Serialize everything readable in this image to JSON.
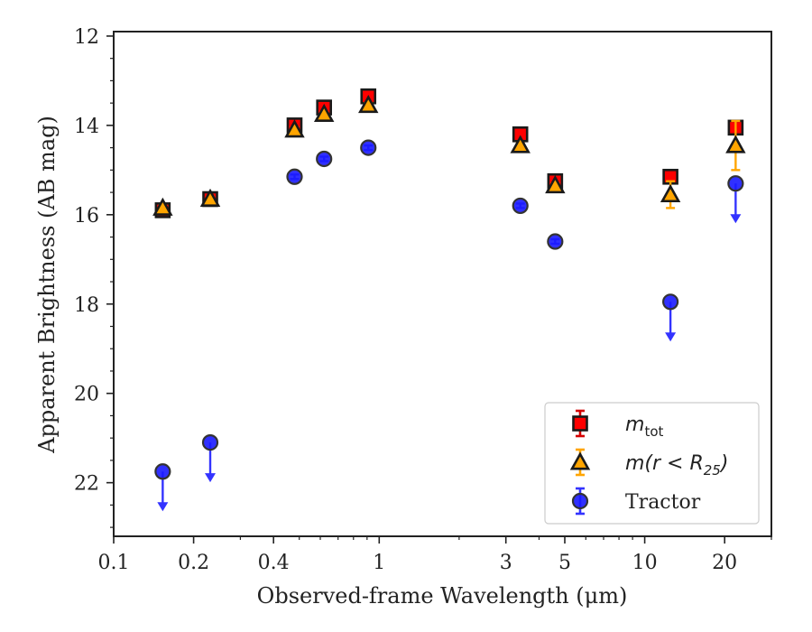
{
  "chart_data": {
    "type": "scatter",
    "xlabel": "Observed-frame Wavelength (μm)",
    "ylabel": "Apparent Brightness (AB mag)",
    "xscale": "log",
    "xlim": [
      0.1,
      30
    ],
    "ylim": [
      23.2,
      11.9
    ],
    "y_inverted": true,
    "x_ticks": [
      0.1,
      0.2,
      0.4,
      1,
      3,
      5,
      10,
      20
    ],
    "x_tick_labels": [
      "0.1",
      "0.2",
      "0.4",
      "1",
      "3",
      "5",
      "10",
      "20"
    ],
    "y_ticks": [
      12,
      14,
      16,
      18,
      20,
      22
    ],
    "y_tick_labels": [
      "12",
      "14",
      "16",
      "18",
      "20",
      "22"
    ],
    "legend": {
      "location": "lower right",
      "entries": [
        {
          "main": "m",
          "sub": "tot",
          "suffix": "",
          "color": "#ff0000",
          "errcolor": "#d40000",
          "marker": "square"
        },
        {
          "main": "m(r < R",
          "sub": "25",
          "suffix": ")",
          "color": "#ffa500",
          "errcolor": "#ffa500",
          "marker": "triangle"
        },
        {
          "main": "Tractor",
          "sub": "",
          "suffix": "",
          "color": "#1a1aff",
          "errcolor": "#3333ff",
          "marker": "circle"
        }
      ]
    },
    "series": [
      {
        "name": "m_tot",
        "marker": "square",
        "color": "#ff0000",
        "errcolor": "#d40000",
        "points": [
          {
            "x": 0.153,
            "y": 15.9,
            "err": 0.05
          },
          {
            "x": 0.231,
            "y": 15.65,
            "err": 0.05
          },
          {
            "x": 0.48,
            "y": 14.0,
            "err": 0.05
          },
          {
            "x": 0.62,
            "y": 13.6,
            "err": 0.05
          },
          {
            "x": 0.91,
            "y": 13.35,
            "err": 0.05
          },
          {
            "x": 3.4,
            "y": 14.2,
            "err": 0.05
          },
          {
            "x": 4.6,
            "y": 15.25,
            "err": 0.05
          },
          {
            "x": 12.5,
            "y": 15.15,
            "err": 0.05
          },
          {
            "x": 22.0,
            "y": 14.05,
            "err": 0.05
          }
        ]
      },
      {
        "name": "m(r<R25)",
        "marker": "triangle",
        "color": "#ffa500",
        "errcolor": "#ffa500",
        "points": [
          {
            "x": 0.153,
            "y": 15.85,
            "err": 0.05
          },
          {
            "x": 0.231,
            "y": 15.65,
            "err": 0.05
          },
          {
            "x": 0.48,
            "y": 14.1,
            "err": 0.05
          },
          {
            "x": 0.62,
            "y": 13.75,
            "err": 0.05
          },
          {
            "x": 0.91,
            "y": 13.55,
            "err": 0.05
          },
          {
            "x": 3.4,
            "y": 14.45,
            "err": 0.05
          },
          {
            "x": 4.6,
            "y": 15.35,
            "err": 0.05
          },
          {
            "x": 12.5,
            "y": 15.55,
            "err": 0.3
          },
          {
            "x": 22.0,
            "y": 14.45,
            "err": 0.55
          }
        ]
      },
      {
        "name": "Tractor",
        "marker": "circle",
        "color": "#1a1aff",
        "errcolor": "#3333ff",
        "points": [
          {
            "x": 0.153,
            "y": 21.75,
            "upper_limit": true
          },
          {
            "x": 0.231,
            "y": 21.1,
            "upper_limit": true
          },
          {
            "x": 0.48,
            "y": 15.15,
            "err": 0.05
          },
          {
            "x": 0.62,
            "y": 14.75,
            "err": 0.05
          },
          {
            "x": 0.91,
            "y": 14.5,
            "err": 0.05
          },
          {
            "x": 3.4,
            "y": 15.8,
            "err": 0.05
          },
          {
            "x": 4.6,
            "y": 16.6,
            "err": 0.05
          },
          {
            "x": 12.5,
            "y": 17.95,
            "upper_limit": true
          },
          {
            "x": 22.0,
            "y": 15.3,
            "upper_limit": true
          }
        ]
      }
    ]
  }
}
